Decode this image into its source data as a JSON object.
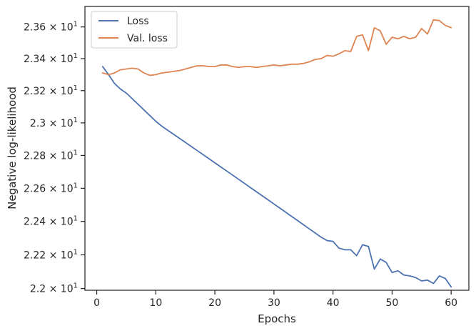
{
  "chart_data": {
    "type": "line",
    "xlabel": "Epochs",
    "ylabel": "Negative log-likelihood",
    "xlim": [
      -2,
      63
    ],
    "ylim": [
      21.99,
      23.73
    ],
    "y_scale": "log",
    "grid": false,
    "legend_placement": "top-left",
    "x_ticks": [
      0,
      10,
      20,
      30,
      40,
      50,
      60
    ],
    "x_tick_labels": [
      "0",
      "10",
      "20",
      "30",
      "40",
      "50",
      "60"
    ],
    "y_ticks": [
      22.0,
      22.2,
      22.4,
      22.6,
      22.8,
      23.0,
      23.2,
      23.4,
      23.6
    ],
    "y_tick_mantissas": [
      "2.2",
      "2.22",
      "2.24",
      "2.26",
      "2.28",
      "2.3",
      "2.32",
      "2.34",
      "2.36"
    ],
    "y_tick_base": "10",
    "y_tick_exponent": "1",
    "x": [
      1,
      2,
      3,
      4,
      5,
      6,
      7,
      8,
      9,
      10,
      11,
      12,
      13,
      14,
      15,
      16,
      17,
      18,
      19,
      20,
      21,
      22,
      23,
      24,
      25,
      26,
      27,
      28,
      29,
      30,
      31,
      32,
      33,
      34,
      35,
      36,
      37,
      38,
      39,
      40,
      41,
      42,
      43,
      44,
      45,
      46,
      47,
      48,
      49,
      50,
      51,
      52,
      53,
      54,
      55,
      56,
      57,
      58,
      59,
      60
    ],
    "series": [
      {
        "name": "Loss",
        "color": "#4c72b0",
        "values": [
          23.35,
          23.3,
          23.245,
          23.21,
          23.185,
          23.15,
          23.115,
          23.08,
          23.045,
          23.01,
          22.98,
          22.955,
          22.93,
          22.905,
          22.88,
          22.855,
          22.83,
          22.805,
          22.78,
          22.755,
          22.73,
          22.705,
          22.68,
          22.655,
          22.63,
          22.605,
          22.58,
          22.555,
          22.53,
          22.505,
          22.48,
          22.455,
          22.43,
          22.405,
          22.38,
          22.355,
          22.33,
          22.305,
          22.285,
          22.28,
          22.24,
          22.23,
          22.23,
          22.195,
          22.26,
          22.25,
          22.115,
          22.175,
          22.155,
          22.095,
          22.105,
          22.08,
          22.075,
          22.065,
          22.045,
          22.05,
          22.03,
          22.075,
          22.06,
          22.01
        ]
      },
      {
        "name": "Val. loss",
        "color": "#dd8452",
        "values": [
          23.31,
          23.3,
          23.31,
          23.33,
          23.335,
          23.34,
          23.335,
          23.31,
          23.295,
          23.3,
          23.31,
          23.315,
          23.32,
          23.325,
          23.335,
          23.345,
          23.355,
          23.355,
          23.35,
          23.35,
          23.36,
          23.36,
          23.35,
          23.345,
          23.35,
          23.35,
          23.345,
          23.35,
          23.355,
          23.36,
          23.355,
          23.36,
          23.365,
          23.365,
          23.37,
          23.38,
          23.395,
          23.4,
          23.42,
          23.415,
          23.43,
          23.45,
          23.445,
          23.54,
          23.55,
          23.45,
          23.595,
          23.575,
          23.49,
          23.535,
          23.525,
          23.54,
          23.525,
          23.535,
          23.59,
          23.555,
          23.645,
          23.64,
          23.61,
          23.595
        ]
      }
    ]
  }
}
